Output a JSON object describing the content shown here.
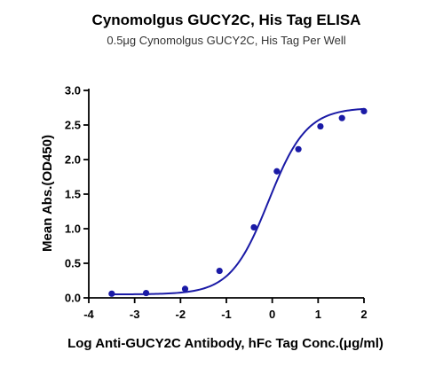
{
  "chart_data": {
    "type": "scatter",
    "title": "Cynomolgus GUCY2C, His Tag ELISA",
    "subtitle": "0.5μg Cynomolgus GUCY2C, His Tag Per Well",
    "xlabel": "Log Anti-GUCY2C Antibody, hFc Tag Conc.(μg/ml)",
    "ylabel": "Mean Abs.(OD450)",
    "xlim": [
      -4,
      2
    ],
    "ylim": [
      0,
      3
    ],
    "x_ticks": [
      "-4",
      "-3",
      "-2",
      "-1",
      "0",
      "1",
      "2"
    ],
    "y_ticks": [
      "0.0",
      "0.5",
      "1.0",
      "1.5",
      "2.0",
      "2.5",
      "3.0"
    ],
    "grid": false,
    "fit_curve": "sigmoidal",
    "colors": {
      "series": "#1a1aa6"
    },
    "series": [
      {
        "x": [
          -3.5,
          -2.75,
          -1.9,
          -1.15,
          -0.4,
          0.1,
          0.57,
          1.05,
          1.52,
          2.0
        ],
        "y": [
          0.06,
          0.07,
          0.13,
          0.39,
          1.02,
          1.83,
          2.15,
          2.48,
          2.6,
          2.7
        ]
      }
    ]
  }
}
